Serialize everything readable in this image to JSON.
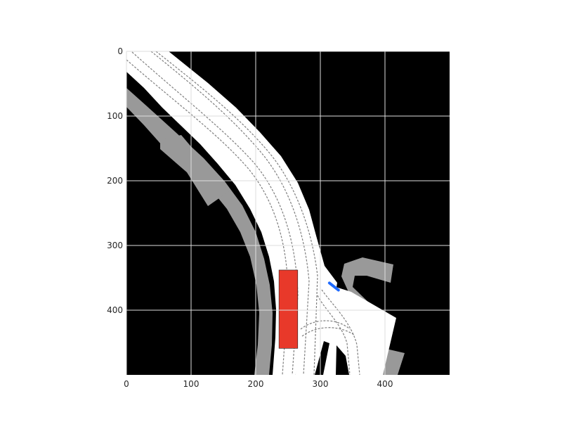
{
  "colors": {
    "background": "#000000",
    "drivable": "#ffffff",
    "sidewalk": "#999999",
    "lane_marking": "#7f7f7f",
    "grid": "#dedede",
    "ego_vehicle": "#e8392a",
    "agent": "#1f6bff"
  },
  "chart_data": {
    "type": "map",
    "xlim": [
      0,
      500
    ],
    "ylim": [
      500,
      0
    ],
    "grid": true,
    "x_ticks": [
      0,
      100,
      200,
      300,
      400
    ],
    "y_ticks": [
      0,
      100,
      200,
      300,
      400
    ],
    "x_tick_labels": [
      "0",
      "100",
      "200",
      "300",
      "400"
    ],
    "y_tick_labels": [
      "0",
      "100",
      "200",
      "300",
      "400"
    ],
    "ego_vehicle": {
      "x": [
        236,
        265
      ],
      "y": [
        338,
        459
      ]
    },
    "agent": {
      "x1": 314,
      "y1": 358,
      "x2": 328,
      "y2": 369
    }
  }
}
